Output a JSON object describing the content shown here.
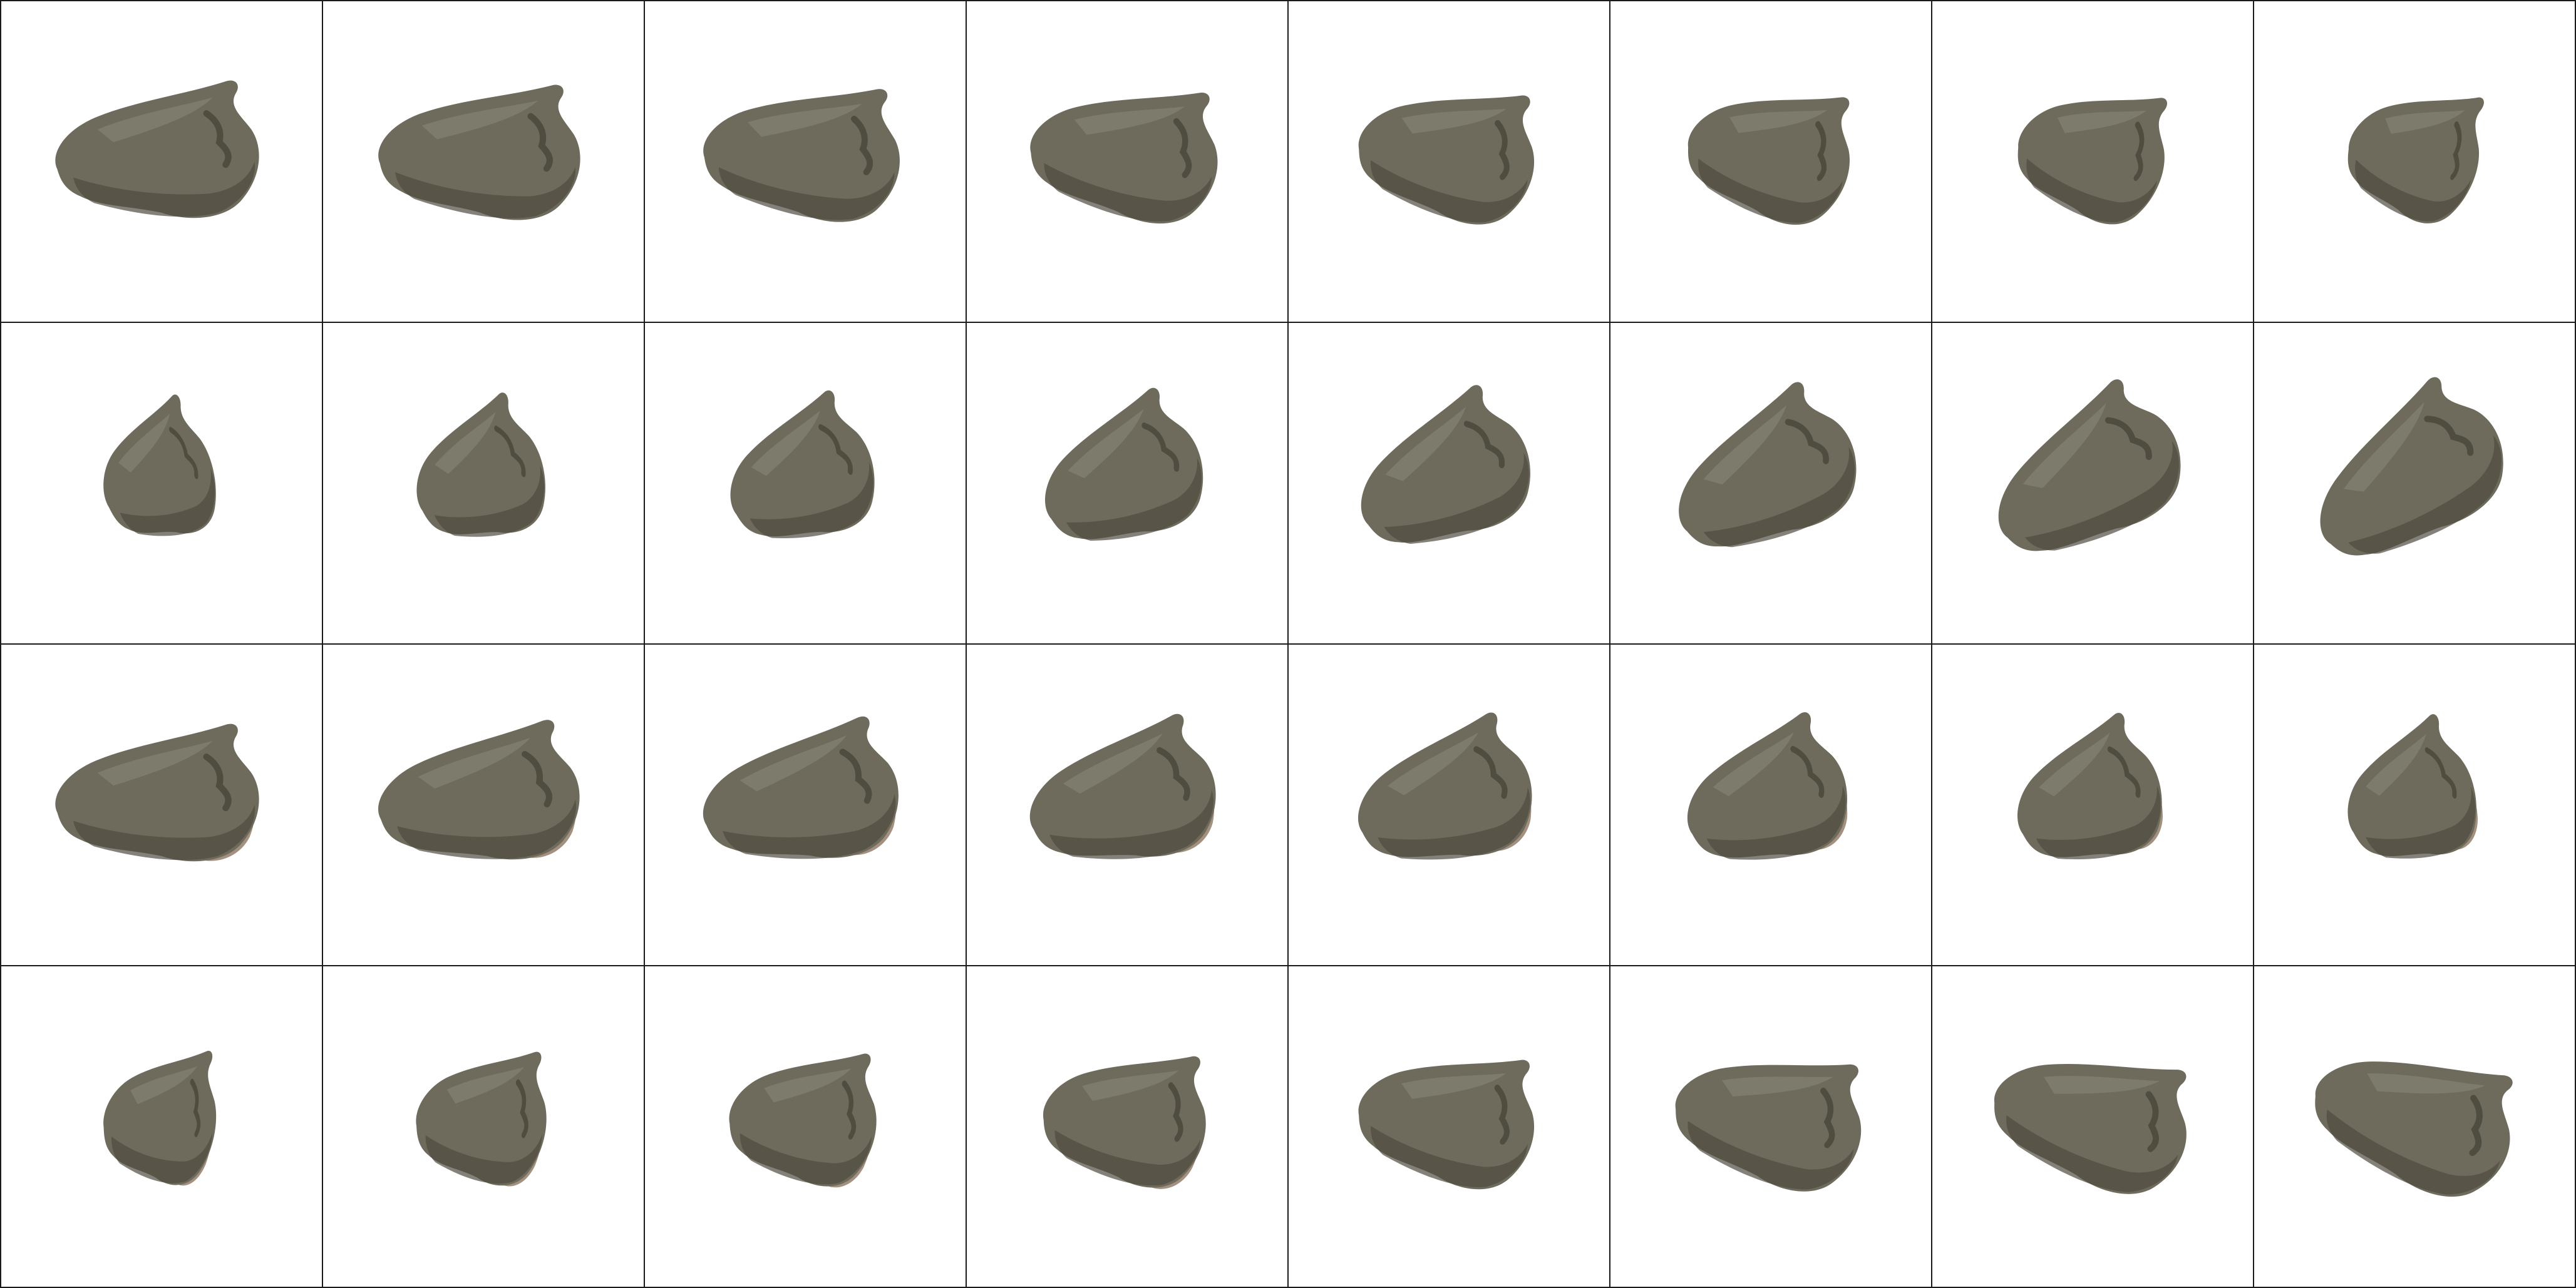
{
  "grid": {
    "rows": 4,
    "columns": 8,
    "background": "#ffffff",
    "line_color": "#1a1a1a"
  },
  "subject": {
    "name": "shoe",
    "upper_color": "#6e6b5c",
    "upper_dark": "#4f4c40",
    "upper_light": "#8b887a",
    "sole_color": "#a3907f",
    "frame_count": 32,
    "rotation_step_degrees": 11.25
  }
}
